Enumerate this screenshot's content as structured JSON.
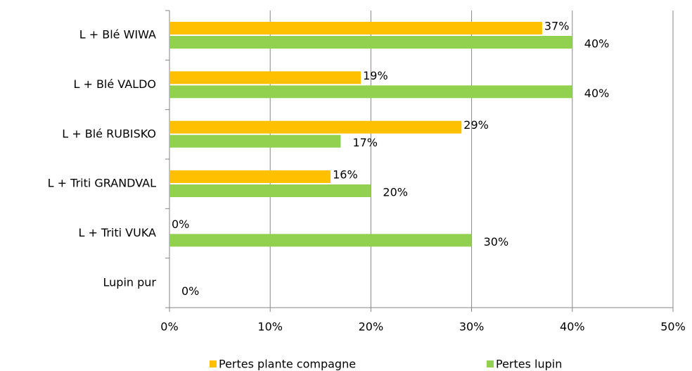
{
  "chart_data": {
    "type": "hbar",
    "categories": [
      "L + Blé WIWA",
      "L + Blé VALDO",
      "L + Blé RUBISKO",
      "L + Triti GRANDVAL",
      "L + Triti VUKA",
      "Lupin pur"
    ],
    "series": [
      {
        "name": "Pertes plante compagne",
        "color": "#ffc000",
        "values": [
          37,
          19,
          29,
          16,
          0,
          null
        ],
        "value_labels": [
          "37%",
          "19%",
          "29%",
          "16%",
          "0%",
          null
        ]
      },
      {
        "name": "Pertes lupin",
        "color": "#92d050",
        "values": [
          40,
          40,
          17,
          20,
          30,
          0
        ],
        "value_labels": [
          "40%",
          "40%",
          "17%",
          "20%",
          "30%",
          "0%"
        ]
      }
    ],
    "xlim": [
      0,
      50
    ],
    "xticks": [
      {
        "value": 0,
        "label": "0%"
      },
      {
        "value": 10,
        "label": "10%"
      },
      {
        "value": 20,
        "label": "20%"
      },
      {
        "value": 30,
        "label": "30%"
      },
      {
        "value": 40,
        "label": "40%"
      },
      {
        "value": 50,
        "label": "50%"
      }
    ],
    "grid": true,
    "legend": "bottom"
  }
}
